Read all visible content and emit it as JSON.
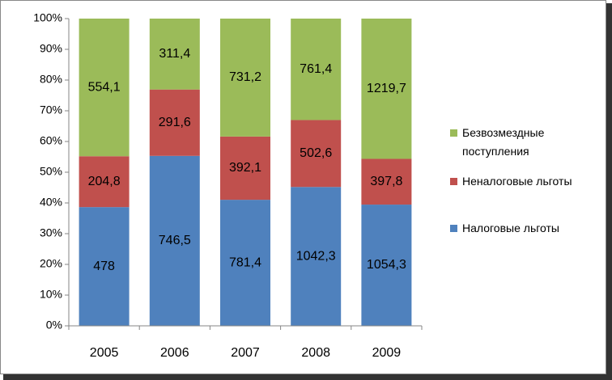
{
  "chart_data": {
    "type": "bar",
    "stacked": "percent",
    "categories": [
      "2005",
      "2006",
      "2007",
      "2008",
      "2009"
    ],
    "series": [
      {
        "name": "Налоговые льготы",
        "color": "#4f81bd",
        "values": [
          478,
          746.5,
          781.4,
          1042.3,
          1054.3
        ],
        "value_labels": [
          "478",
          "746,5",
          "781,4",
          "1042,3",
          "1054,3"
        ]
      },
      {
        "name": "Неналоговые льготы",
        "color": "#c0504d",
        "values": [
          204.8,
          291.6,
          392.1,
          502.6,
          397.8
        ],
        "value_labels": [
          "204,8",
          "291,6",
          "392,1",
          "502,6",
          "397,8"
        ]
      },
      {
        "name": "Безвозмездные поступления",
        "color": "#9bbb59",
        "values": [
          554.1,
          311.4,
          731.2,
          761.4,
          1219.7
        ],
        "value_labels": [
          "554,1",
          "311,4",
          "731,2",
          "761,4",
          "1219,7"
        ]
      }
    ],
    "ylim": [
      0,
      100
    ],
    "yticks": [
      {
        "value": 0,
        "label": "0%"
      },
      {
        "value": 10,
        "label": "10%"
      },
      {
        "value": 20,
        "label": "20%"
      },
      {
        "value": 30,
        "label": "30%"
      },
      {
        "value": 40,
        "label": "40%"
      },
      {
        "value": 50,
        "label": "50%"
      },
      {
        "value": 60,
        "label": "60%"
      },
      {
        "value": 70,
        "label": "70%"
      },
      {
        "value": 80,
        "label": "80%"
      },
      {
        "value": 90,
        "label": "90%"
      },
      {
        "value": 100,
        "label": "100%"
      }
    ],
    "legend": "right"
  }
}
